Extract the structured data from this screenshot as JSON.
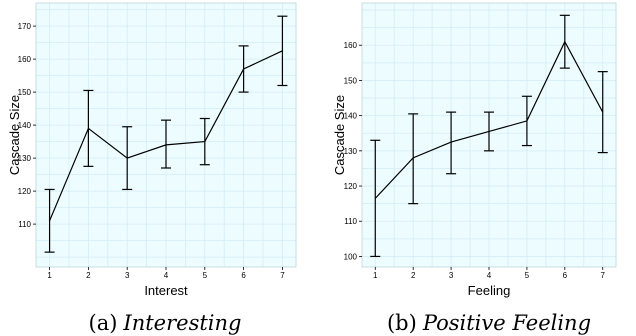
{
  "chart_data": [
    {
      "type": "line",
      "caption": "(a) Interesting",
      "caption_prefix": "(a)",
      "caption_text": "Interesting",
      "xlabel": "Interest",
      "ylabel": "Cascade Size",
      "x": [
        1,
        2,
        3,
        4,
        5,
        6,
        7
      ],
      "xticks": [
        1,
        2,
        3,
        4,
        5,
        6,
        7
      ],
      "yticks": [
        110,
        120,
        130,
        140,
        150,
        160,
        170
      ],
      "xlim": [
        0.65,
        7.35
      ],
      "ylim": [
        97,
        177
      ],
      "grid": true,
      "background": "#edfcfe",
      "grid_color": "#d4ecf7",
      "series": [
        {
          "values": [
            111,
            139,
            130,
            134,
            135,
            157,
            162.5
          ],
          "error_low": [
            101.5,
            127.5,
            120.5,
            127,
            128,
            150,
            152
          ],
          "error_high": [
            120.5,
            150.5,
            139.5,
            141.5,
            142,
            164,
            173
          ]
        }
      ]
    },
    {
      "type": "line",
      "caption": "(b) Positive Feeling",
      "caption_prefix": "(b)",
      "caption_text": "Positive Feeling",
      "xlabel": "Feeling",
      "ylabel": "Cascade Size",
      "x": [
        1,
        2,
        3,
        4,
        5,
        6,
        7
      ],
      "xticks": [
        1,
        2,
        3,
        4,
        5,
        6,
        7
      ],
      "yticks": [
        100,
        110,
        120,
        130,
        140,
        150,
        160
      ],
      "xlim": [
        0.65,
        7.35
      ],
      "ylim": [
        97,
        172
      ],
      "grid": true,
      "background": "#edfcfe",
      "grid_color": "#d4ecf7",
      "series": [
        {
          "values": [
            116.5,
            128,
            132.5,
            135.5,
            138.5,
            161,
            141
          ],
          "error_low": [
            100,
            115,
            123.5,
            130,
            131.5,
            153.5,
            129.5
          ],
          "error_high": [
            133,
            140.5,
            141,
            141,
            145.5,
            168.5,
            152.5
          ]
        }
      ]
    }
  ]
}
